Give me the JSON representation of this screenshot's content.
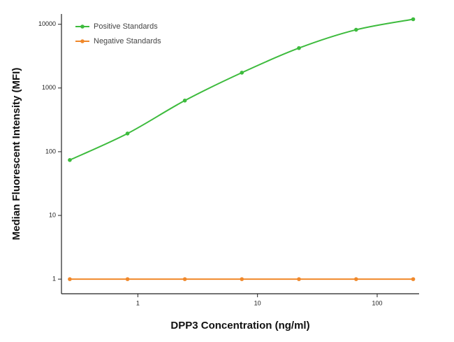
{
  "chart_data": {
    "type": "line",
    "x_label": "DPP3 Concentration (ng/ml)",
    "y_label": "Median  Fluorescent Intensity  (MFI)",
    "x": [
      0.27,
      0.82,
      2.47,
      7.4,
      22.2,
      66.7,
      200
    ],
    "series": [
      {
        "name": "Positive Standards",
        "color": "#3dbb3d",
        "values": [
          74,
          193,
          635,
          1740,
          4230,
          8200,
          12000
        ]
      },
      {
        "name": "Negative Standards",
        "color": "#f0882a",
        "values": [
          1,
          1,
          1,
          1,
          1,
          1,
          1
        ]
      }
    ],
    "xscale": "log",
    "yscale": "log",
    "xlim": [
      0.23,
      224
    ],
    "ylim": [
      0.59,
      14500
    ],
    "xticks": [
      1,
      10,
      100
    ],
    "yticks": [
      1,
      10,
      100,
      1000,
      10000
    ],
    "legend": "top-left"
  }
}
